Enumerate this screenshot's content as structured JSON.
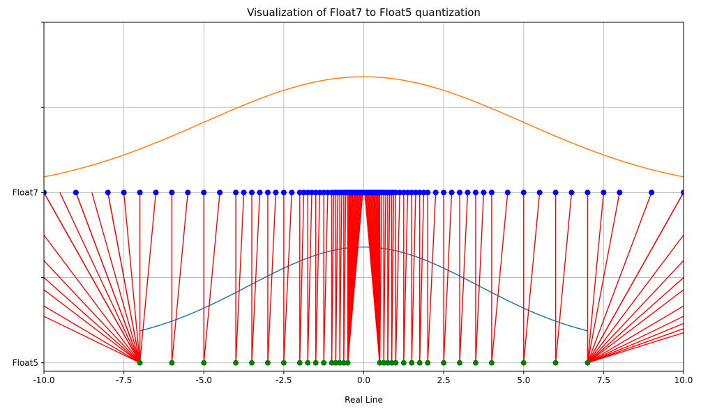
{
  "chart_data": {
    "type": "scatter",
    "title": "Visualization of Float7 to Float5 quantization",
    "xlabel": "Real Line",
    "ylabel": "",
    "xlim": [
      -10,
      10
    ],
    "ylim": [
      -0.05,
      2.0
    ],
    "grid": true,
    "x_ticks": [
      -10,
      -7.5,
      -5,
      -2.5,
      0,
      2.5,
      5,
      7.5,
      10
    ],
    "x_tick_labels": [
      "-10.0",
      "-7.5",
      "-5.0",
      "-2.5",
      "0.0",
      "2.5",
      "5.0",
      "7.5",
      "10.0"
    ],
    "y_ticks": [
      0,
      0.5,
      1,
      1.5,
      2
    ],
    "y_tick_labels": [
      "Float5",
      "",
      "Float7",
      "",
      ""
    ],
    "float7_points": {
      "y": 1,
      "color": "#0000ff",
      "x": [
        -10,
        -9,
        -8,
        -7.5,
        -7,
        -6.5,
        -6,
        -5.5,
        -5,
        -4.5,
        -4,
        -3.75,
        -3.5,
        -3.25,
        -3,
        -2.75,
        -2.5,
        -2.25,
        -2,
        -1.875,
        -1.75,
        -1.625,
        -1.5,
        -1.375,
        -1.25,
        -1.125,
        -1,
        -0.9375,
        -0.875,
        -0.8125,
        -0.75,
        -0.6875,
        -0.625,
        -0.5625,
        -0.5,
        -0.46875,
        -0.4375,
        -0.40625,
        -0.375,
        -0.34375,
        -0.3125,
        -0.28125,
        -0.25,
        -0.21875,
        -0.1875,
        -0.15625,
        -0.125,
        -0.09375,
        -0.0625,
        -0.03125,
        0.03125,
        0.0625,
        0.09375,
        0.125,
        0.15625,
        0.1875,
        0.21875,
        0.25,
        0.28125,
        0.3125,
        0.34375,
        0.375,
        0.40625,
        0.4375,
        0.46875,
        0.5,
        0.5625,
        0.625,
        0.6875,
        0.75,
        0.8125,
        0.875,
        0.9375,
        1,
        1.125,
        1.25,
        1.375,
        1.5,
        1.625,
        1.75,
        1.875,
        2,
        2.25,
        2.5,
        2.75,
        3,
        3.25,
        3.5,
        3.75,
        4,
        4.5,
        5,
        5.5,
        6,
        6.5,
        7,
        7.5,
        8,
        9,
        10
      ]
    },
    "float5_points": {
      "y": 0,
      "color": "#008000",
      "x": [
        -7,
        -6,
        -5,
        -4,
        -3.5,
        -3,
        -2.5,
        -2,
        -1.75,
        -1.5,
        -1.25,
        -1,
        -0.875,
        -0.75,
        -0.625,
        -0.5,
        0.5,
        0.625,
        0.75,
        0.875,
        1,
        1.25,
        1.5,
        1.75,
        2,
        2.5,
        3,
        3.5,
        4,
        5,
        6,
        7
      ]
    },
    "mapping_lines": {
      "color": "#ff0000",
      "description_pairs_from": "float7_points",
      "clip_to_float5": [
        -7,
        7
      ],
      "offscreen_sources": [
        -18,
        -16,
        -14,
        -13,
        -12,
        -11,
        -10,
        -9.5,
        -9,
        -8.5,
        -8,
        10,
        11,
        12,
        13,
        14,
        16,
        18,
        20,
        22,
        24
      ]
    },
    "series": [
      {
        "type": "curve",
        "color": "#1f77b4",
        "mu": 0,
        "sigma": 3.6,
        "y_base": 0.1,
        "peak": 0.58,
        "x_range": [
          -7,
          7
        ]
      },
      {
        "type": "curve",
        "color": "#ff7f0e",
        "mu": 0,
        "sigma": 5.0,
        "y_base": 1.0,
        "peak": 0.68,
        "x_range": [
          -10,
          10
        ]
      }
    ]
  }
}
